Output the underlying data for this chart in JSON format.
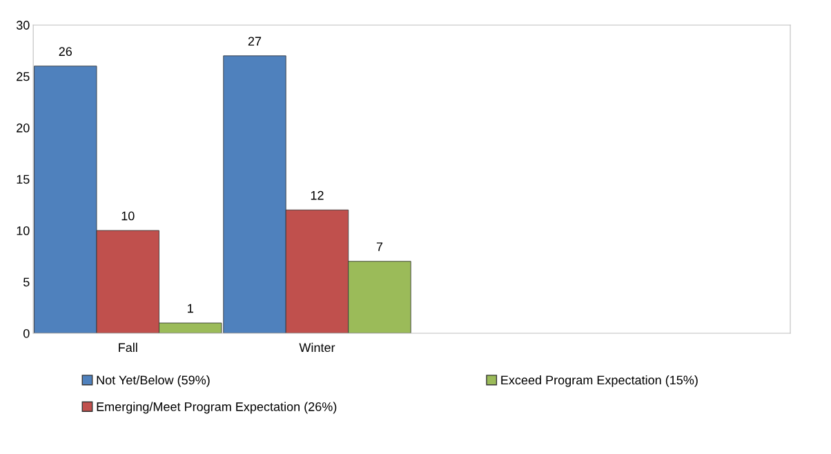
{
  "chart_data": {
    "type": "bar",
    "categories": [
      "Fall",
      "Winter",
      null,
      null
    ],
    "series": [
      {
        "name": "Not Yet/Below (59%)",
        "color": "#4f81bd",
        "values": [
          26,
          27,
          null,
          null
        ]
      },
      {
        "name": "Emerging/Meet Program Expectation (26%)",
        "color": "#c0504d",
        "values": [
          10,
          12,
          null,
          null
        ]
      },
      {
        "name": "Exceed Program Expectation (15%)",
        "color": "#9bbb59",
        "values": [
          1,
          7,
          null,
          null
        ]
      }
    ],
    "ylim": [
      0,
      30
    ],
    "yticks": [
      0,
      5,
      10,
      15,
      20,
      25,
      30
    ],
    "data_labels": true,
    "grid": false,
    "legend": "bottom"
  }
}
